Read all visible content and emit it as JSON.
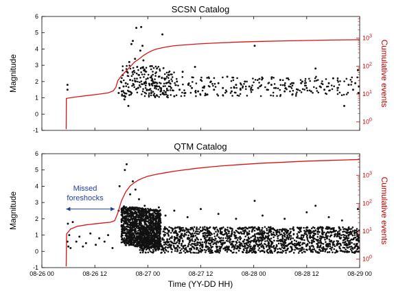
{
  "colors": {
    "dots": "#111111",
    "cumulative": "#dd1111",
    "annotation": "#1f3f9f",
    "right_axis": "#cc0000"
  },
  "x_axis": {
    "label": "Time (YY-DD HH)",
    "ticks": [
      "08-26 00",
      "08-26 12",
      "08-27 00",
      "08-27 12",
      "08-28 00",
      "08-28 12",
      "08-29 00"
    ],
    "range_hours": [
      0,
      72
    ]
  },
  "chart_data": [
    {
      "type": "scatter",
      "title": "SCSN Catalog",
      "ylabel": "Magnitude",
      "ylim": [
        -1,
        6
      ],
      "yticks": [
        "-1",
        "0",
        "1",
        "2",
        "3",
        "4",
        "5",
        "6"
      ],
      "y2label": "Cumulative events",
      "y2_scale": "log",
      "y2lim": [
        0.5,
        6000
      ],
      "y2ticks": [
        "10^0",
        "10^1",
        "10^2",
        "10^3"
      ],
      "series": [
        {
          "kind": "dots",
          "points": [
            [
              5.8,
              1.8
            ],
            [
              5.8,
              1.5
            ],
            [
              17.4,
              1.3
            ],
            [
              17.6,
              1.6
            ],
            [
              17.9,
              2.0
            ],
            [
              18.1,
              1.4
            ],
            [
              18.3,
              2.4
            ],
            [
              18.5,
              1.7
            ],
            [
              18.7,
              0.9
            ],
            [
              19.0,
              1.9
            ],
            [
              19.3,
              2.6
            ],
            [
              19.6,
              0.5
            ],
            [
              19.8,
              3.2
            ],
            [
              20.0,
              2.1
            ],
            [
              20.3,
              4.3
            ],
            [
              20.6,
              4.5
            ],
            [
              20.8,
              1.8
            ],
            [
              21.1,
              3.4
            ],
            [
              21.4,
              5.3
            ],
            [
              21.6,
              2.9
            ],
            [
              21.8,
              1.6
            ],
            [
              22.0,
              2.4
            ],
            [
              22.3,
              3.9
            ],
            [
              22.5,
              5.35
            ],
            [
              22.8,
              4.2
            ],
            [
              23.0,
              3.3
            ],
            [
              23.3,
              2.7
            ],
            [
              23.6,
              1.9
            ],
            [
              24.0,
              2.2
            ],
            [
              24.4,
              1.5
            ],
            [
              24.8,
              1.3
            ],
            [
              25.2,
              2.0
            ],
            [
              25.6,
              1.1
            ],
            [
              26.0,
              1.7
            ],
            [
              26.5,
              2.3
            ],
            [
              26.9,
              1.4
            ],
            [
              27.3,
              4.9
            ],
            [
              27.7,
              1.2
            ],
            [
              28.2,
              1.9
            ],
            [
              28.8,
              2.4
            ],
            [
              29.3,
              1.6
            ],
            [
              30.0,
              1.1
            ],
            [
              30.6,
              2.0
            ],
            [
              31.2,
              1.5
            ],
            [
              31.9,
              2.6
            ],
            [
              32.5,
              1.3
            ],
            [
              33.2,
              1.8
            ],
            [
              34.0,
              1.6
            ],
            [
              34.7,
              2.9
            ],
            [
              35.4,
              1.4
            ],
            [
              36.0,
              2.1
            ],
            [
              36.8,
              1.7
            ],
            [
              37.5,
              1.2
            ],
            [
              38.3,
              2.0
            ],
            [
              39.0,
              1.5
            ],
            [
              40.0,
              1.9
            ],
            [
              41.0,
              1.6
            ],
            [
              42.0,
              2.3
            ],
            [
              43.0,
              1.4
            ],
            [
              44.0,
              1.8
            ],
            [
              45.0,
              1.5
            ],
            [
              46.0,
              2.0
            ],
            [
              47.0,
              1.7
            ],
            [
              48.2,
              4.2
            ],
            [
              49.0,
              1.6
            ],
            [
              50.0,
              2.2
            ],
            [
              51.0,
              1.5
            ],
            [
              52.0,
              1.8
            ],
            [
              53.0,
              1.6
            ],
            [
              54.0,
              2.1
            ],
            [
              55.0,
              1.4
            ],
            [
              56.0,
              1.7
            ],
            [
              57.0,
              1.9
            ],
            [
              58.0,
              1.5
            ],
            [
              59.0,
              2.0
            ],
            [
              60.0,
              1.6
            ],
            [
              61.0,
              1.4
            ],
            [
              62.0,
              2.8
            ],
            [
              63.0,
              1.7
            ],
            [
              64.0,
              1.5
            ],
            [
              65.0,
              1.9
            ],
            [
              66.0,
              2.2
            ],
            [
              67.0,
              1.6
            ],
            [
              68.5,
              0.5
            ],
            [
              69.5,
              1.8
            ],
            [
              70.5,
              1.5
            ],
            [
              71.0,
              1.9
            ],
            [
              71.6,
              2.7
            ],
            [
              71.7,
              1.3
            ]
          ]
        },
        {
          "kind": "line",
          "name": "",
          "points": [
            [
              5.5,
              0.55
            ],
            [
              5.55,
              7
            ],
            [
              8,
              8
            ],
            [
              12,
              9.5
            ],
            [
              15,
              11
            ],
            [
              16.2,
              13
            ],
            [
              16.8,
              18
            ],
            [
              17.2,
              30
            ],
            [
              18,
              45
            ],
            [
              19,
              65
            ],
            [
              20,
              95
            ],
            [
              21,
              140
            ],
            [
              22,
              180
            ],
            [
              23,
              240
            ],
            [
              24,
              300
            ],
            [
              25,
              360
            ],
            [
              26,
              410
            ],
            [
              28,
              480
            ],
            [
              30,
              540
            ],
            [
              35,
              620
            ],
            [
              40,
              680
            ],
            [
              45,
              730
            ],
            [
              50,
              770
            ],
            [
              55,
              800
            ],
            [
              60,
              830
            ],
            [
              65,
              855
            ],
            [
              70,
              875
            ],
            [
              72,
              880
            ]
          ]
        }
      ]
    },
    {
      "type": "scatter",
      "title": "QTM Catalog",
      "ylabel": "Magnitude",
      "ylim": [
        -1,
        6
      ],
      "yticks": [
        "-1",
        "0",
        "1",
        "2",
        "3",
        "4",
        "5",
        "6"
      ],
      "y2label": "Cumulative events",
      "y2_scale": "log",
      "y2lim": [
        0.5,
        6000
      ],
      "y2ticks": [
        "10^0",
        "10^1",
        "10^2",
        "10^3"
      ],
      "annotation": {
        "text_line1": "Missed",
        "text_line2": "foreshocks",
        "arrow_from_hours": 5.5,
        "arrow_to_hours": 16.5,
        "arrow_magnitude": 2.6
      },
      "series": [
        {
          "kind": "dots",
          "points": [
            [
              5.8,
              0.6
            ],
            [
              5.9,
              1.7
            ],
            [
              6.0,
              0.3
            ],
            [
              6.2,
              1.0
            ],
            [
              6.5,
              0.2
            ],
            [
              7.0,
              1.8
            ],
            [
              7.8,
              0.6
            ],
            [
              8.5,
              0.9
            ],
            [
              9.3,
              0.3
            ],
            [
              10.0,
              0.5
            ],
            [
              11.0,
              1.1
            ],
            [
              12.2,
              0.4
            ],
            [
              13.0,
              0.8
            ],
            [
              14.2,
              0.6
            ],
            [
              15.0,
              1.0
            ],
            [
              16.0,
              0.2
            ],
            [
              17.4,
              2.5
            ],
            [
              17.6,
              4.0
            ],
            [
              18.8,
              5.0
            ],
            [
              19.2,
              5.35
            ],
            [
              20.0,
              3.5
            ],
            [
              20.6,
              4.3
            ],
            [
              21.2,
              3.8
            ],
            [
              22.0,
              3.2
            ],
            [
              23.3,
              2.8
            ],
            [
              24.0,
              2.4
            ],
            [
              26.5,
              2.7
            ],
            [
              28.0,
              2.2
            ],
            [
              30.0,
              2.5
            ],
            [
              33.0,
              2.1
            ],
            [
              36.0,
              2.6
            ],
            [
              40.0,
              2.3
            ],
            [
              44.0,
              2.0
            ],
            [
              48.2,
              3.1
            ],
            [
              50.0,
              2.2
            ],
            [
              55.0,
              2.0
            ],
            [
              60.0,
              2.4
            ],
            [
              62.0,
              2.8
            ],
            [
              65.0,
              2.1
            ],
            [
              68.0,
              1.9
            ],
            [
              71.6,
              2.6
            ]
          ]
        },
        {
          "kind": "line",
          "name": "",
          "points": [
            [
              5.5,
              0.55
            ],
            [
              5.6,
              8
            ],
            [
              6.5,
              12
            ],
            [
              8,
              15
            ],
            [
              10,
              17
            ],
            [
              12,
              18.5
            ],
            [
              14,
              20
            ],
            [
              15.5,
              21
            ],
            [
              16.5,
              24
            ],
            [
              17.2,
              45
            ],
            [
              18,
              120
            ],
            [
              19,
              260
            ],
            [
              20,
              420
            ],
            [
              21,
              560
            ],
            [
              22,
              700
            ],
            [
              23,
              820
            ],
            [
              24,
              930
            ],
            [
              26,
              1100
            ],
            [
              28,
              1250
            ],
            [
              30,
              1420
            ],
            [
              35,
              1800
            ],
            [
              40,
              2150
            ],
            [
              45,
              2450
            ],
            [
              50,
              2750
            ],
            [
              55,
              3000
            ],
            [
              60,
              3250
            ],
            [
              65,
              3450
            ],
            [
              70,
              3650
            ],
            [
              72,
              3700
            ]
          ]
        }
      ]
    }
  ]
}
